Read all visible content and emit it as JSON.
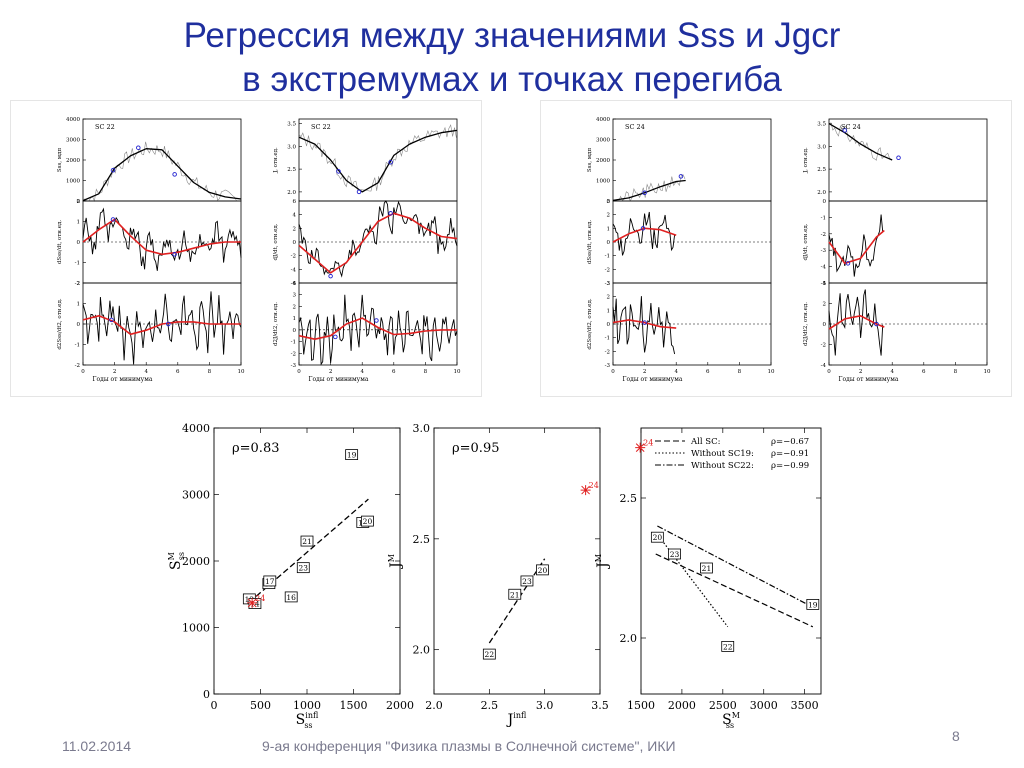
{
  "slide": {
    "title_line1": "Регрессия между значениями Sss и Jgcr",
    "title_line2": "в экстремумах и точках перегиба",
    "date": "11.02.2014",
    "conference": "9-ая конференция \"Физика плазмы в Солнечной системе\", ИКИ",
    "page_number": "8"
  },
  "colors": {
    "title": "#1f2f9e",
    "fit": "#e02020",
    "points": "#2020d0",
    "footer": "#7a7a8e"
  },
  "chart_data": [
    {
      "type": "line",
      "id": "sc22",
      "label": "SC 22",
      "xlabel": "Годы от минимума",
      "xlim": [
        0,
        10
      ],
      "xticks": [
        "0",
        "2",
        "4",
        "6",
        "8",
        "10"
      ],
      "subplots": [
        {
          "ylabel": "Sss, мдп",
          "ylim": [
            0,
            4000
          ],
          "yticks": [
            "0",
            "1000",
            "2000",
            "3000",
            "4000"
          ],
          "smooth": [
            [
              0,
              20
            ],
            [
              1,
              350
            ],
            [
              2,
              1600
            ],
            [
              3,
              2200
            ],
            [
              4,
              2550
            ],
            [
              5,
              2500
            ],
            [
              6,
              1700
            ],
            [
              7,
              900
            ],
            [
              8,
              420
            ],
            [
              9,
              200
            ],
            [
              10,
              100
            ]
          ],
          "markers": [
            [
              1.9,
              1500
            ],
            [
              3.5,
              2600
            ],
            [
              5.8,
              1300
            ]
          ]
        },
        {
          "ylabel": "dSss/dt, отн.ед.",
          "ylim": [
            -2,
            2
          ],
          "yticks": [
            "-2",
            "-1",
            "0",
            "1",
            "2"
          ],
          "fit": [
            [
              0,
              0
            ],
            [
              1,
              0.6
            ],
            [
              2,
              1.1
            ],
            [
              3,
              0.3
            ],
            [
              4,
              -0.4
            ],
            [
              5,
              -0.6
            ],
            [
              6,
              -0.5
            ],
            [
              7,
              -0.3
            ],
            [
              8,
              -0.1
            ],
            [
              9,
              0
            ],
            [
              10,
              0
            ]
          ],
          "markers": [
            [
              1.9,
              1.1
            ],
            [
              5.8,
              -0.6
            ]
          ]
        },
        {
          "ylabel": "d2Sss/dt2, отн.ед.",
          "ylim": [
            -2,
            2
          ],
          "yticks": [
            "-2",
            "-1",
            "0",
            "1",
            "2"
          ],
          "fit": [
            [
              0,
              0.2
            ],
            [
              1,
              0.4
            ],
            [
              2,
              0.1
            ],
            [
              3,
              -0.5
            ],
            [
              4,
              -0.3
            ],
            [
              5,
              0
            ],
            [
              6,
              0.1
            ],
            [
              7,
              0.1
            ],
            [
              8,
              0
            ],
            [
              9,
              0
            ],
            [
              10,
              0
            ]
          ],
          "markers": [
            [
              1.8,
              0.2
            ],
            [
              5.4,
              0
            ]
          ]
        }
      ]
    },
    {
      "type": "line",
      "id": "sc22j",
      "label": "SC 22",
      "xlabel": "Годы от минимума",
      "xlim": [
        0,
        10
      ],
      "xticks": [
        "0",
        "2",
        "4",
        "6",
        "8",
        "10"
      ],
      "subplots": [
        {
          "ylabel": "J, отн.ед.",
          "ylim": [
            1.8,
            3.6
          ],
          "yticks": [
            "2.0",
            "2.5",
            "3.0",
            "3.5"
          ],
          "smooth": [
            [
              0,
              3.2
            ],
            [
              1,
              3.05
            ],
            [
              2,
              2.7
            ],
            [
              3,
              2.25
            ],
            [
              4,
              2.0
            ],
            [
              5,
              2.2
            ],
            [
              6,
              2.8
            ],
            [
              7,
              3.05
            ],
            [
              8,
              3.2
            ],
            [
              9,
              3.3
            ],
            [
              10,
              3.35
            ]
          ],
          "markers": [
            [
              2.5,
              2.45
            ],
            [
              3.8,
              2.0
            ],
            [
              5.8,
              2.65
            ]
          ]
        },
        {
          "ylabel": "dJ/dt, отн.ед.",
          "ylim": [
            -6,
            6
          ],
          "yticks": [
            "-6",
            "-4",
            "-2",
            "0",
            "2",
            "4",
            "6"
          ],
          "fit": [
            [
              0,
              -0.5
            ],
            [
              1,
              -2.5
            ],
            [
              2,
              -4.5
            ],
            [
              3,
              -3
            ],
            [
              4,
              0
            ],
            [
              5,
              3
            ],
            [
              6,
              4.2
            ],
            [
              7,
              3.5
            ],
            [
              8,
              2
            ],
            [
              9,
              0.8
            ],
            [
              10,
              0.5
            ]
          ],
          "markers": [
            [
              2,
              -5
            ],
            [
              5.8,
              4.2
            ]
          ]
        },
        {
          "ylabel": "d2J/dt2, отн.ед.",
          "ylim": [
            -3,
            4
          ],
          "yticks": [
            "-3",
            "-2",
            "-1",
            "0",
            "1",
            "2",
            "3",
            "4"
          ],
          "fit": [
            [
              0,
              -0.5
            ],
            [
              1,
              -0.8
            ],
            [
              2,
              -0.5
            ],
            [
              3,
              0.5
            ],
            [
              4,
              1
            ],
            [
              5,
              0.2
            ],
            [
              6,
              -0.4
            ],
            [
              7,
              -0.3
            ],
            [
              8,
              -0.1
            ],
            [
              9,
              0
            ],
            [
              10,
              0
            ]
          ],
          "markers": [
            [
              2.3,
              -0.6
            ],
            [
              4.9,
              0.8
            ]
          ]
        }
      ]
    },
    {
      "type": "line",
      "id": "sc24",
      "label": "SC 24",
      "xlabel": "Годы от минимума",
      "xlim": [
        0,
        10
      ],
      "xticks": [
        "0",
        "2",
        "4",
        "6",
        "8",
        "10"
      ],
      "subplots": [
        {
          "ylabel": "Sss, мдп",
          "ylim": [
            0,
            4000
          ],
          "yticks": [
            "0",
            "1000",
            "2000",
            "3000",
            "4000"
          ],
          "smooth": [
            [
              0,
              30
            ],
            [
              1,
              150
            ],
            [
              2,
              400
            ],
            [
              3,
              700
            ],
            [
              4,
              950
            ],
            [
              4.6,
              1000
            ]
          ],
          "markers": [
            [
              2,
              400
            ],
            [
              4.3,
              1200
            ]
          ]
        },
        {
          "ylabel": "dSss/dt, отн.ед.",
          "ylim": [
            -3,
            3
          ],
          "yticks": [
            "-3",
            "-2",
            "-1",
            "0",
            "1",
            "2",
            "3"
          ],
          "fit": [
            [
              0,
              0
            ],
            [
              1,
              0.6
            ],
            [
              2,
              1.0
            ],
            [
              3,
              0.9
            ],
            [
              4,
              0.5
            ]
          ],
          "markers": [
            [
              1.9,
              1.0
            ]
          ]
        },
        {
          "ylabel": "d2Sss/dt2, отн.ед.",
          "ylim": [
            -3,
            3
          ],
          "yticks": [
            "-3",
            "-2",
            "-1",
            "0",
            "1",
            "2",
            "3"
          ],
          "fit": [
            [
              0,
              0.1
            ],
            [
              1,
              0.3
            ],
            [
              2,
              0.1
            ],
            [
              3,
              -0.2
            ],
            [
              4,
              -0.3
            ]
          ],
          "markers": [
            [
              2,
              0.1
            ]
          ]
        }
      ]
    },
    {
      "type": "line",
      "id": "sc24j",
      "label": "SC 24",
      "xlabel": "Годы от минимума",
      "xlim": [
        0,
        10
      ],
      "xticks": [
        "0",
        "2",
        "4",
        "6",
        "8",
        "10"
      ],
      "subplots": [
        {
          "ylabel": "J, отн.ед.",
          "ylim": [
            1.8,
            3.6
          ],
          "yticks": [
            "2.0",
            "2.5",
            "3.0",
            "3.5"
          ],
          "smooth": [
            [
              0,
              3.5
            ],
            [
              1,
              3.3
            ],
            [
              2,
              3.05
            ],
            [
              3,
              2.85
            ],
            [
              4,
              2.7
            ]
          ],
          "markers": [
            [
              1,
              3.35
            ],
            [
              4.4,
              2.75
            ]
          ]
        },
        {
          "ylabel": "dJ/dt, отн.ед.",
          "ylim": [
            -5,
            0
          ],
          "yticks": [
            "-5",
            "-4",
            "-3",
            "-2",
            "-1",
            "0"
          ],
          "fit": [
            [
              0,
              -2.5
            ],
            [
              1,
              -3.8
            ],
            [
              2,
              -3.5
            ],
            [
              3,
              -2.2
            ],
            [
              3.5,
              -1.8
            ]
          ],
          "markers": [
            [
              1.2,
              -3.8
            ]
          ]
        },
        {
          "ylabel": "d2J/dt2, отн.ед.",
          "ylim": [
            -4,
            4
          ],
          "yticks": [
            "-4",
            "-2",
            "0",
            "2",
            "4"
          ],
          "fit": [
            [
              0,
              -0.5
            ],
            [
              1,
              0.5
            ],
            [
              2,
              0.8
            ],
            [
              3,
              0
            ],
            [
              3.5,
              -0.3
            ]
          ],
          "markers": [
            [
              3,
              0
            ]
          ]
        }
      ]
    },
    {
      "type": "scatter",
      "id": "reg1",
      "rho_text": "ρ=0.83",
      "ylabel": "S",
      "ylabel_sup": "M",
      "ylabel_sub": "ss",
      "xlabel": "S",
      "xlabel_sup": "infl",
      "xlabel_sub": "ss",
      "xlim": [
        0,
        2000
      ],
      "ylim": [
        0,
        4000
      ],
      "xticks": [
        "0",
        "500",
        "1000",
        "1500",
        "2000"
      ],
      "yticks": [
        "0",
        "1000",
        "2000",
        "3000",
        "4000"
      ],
      "points": [
        {
          "label": "12",
          "x": 380,
          "y": 1430
        },
        {
          "label": "14",
          "x": 440,
          "y": 1360
        },
        {
          "label": "15",
          "x": 590,
          "y": 1660
        },
        {
          "label": "17",
          "x": 600,
          "y": 1700
        },
        {
          "label": "16",
          "x": 830,
          "y": 1460
        },
        {
          "label": "23",
          "x": 960,
          "y": 1900
        },
        {
          "label": "21",
          "x": 1000,
          "y": 2300
        },
        {
          "label": "19",
          "x": 1480,
          "y": 3600
        },
        {
          "label": "18",
          "x": 1600,
          "y": 2580
        },
        {
          "label": "20",
          "x": 1650,
          "y": 2600
        }
      ],
      "star": {
        "label": "24",
        "x": 410,
        "y": 1370
      },
      "fit_line": [
        [
          380,
          1380
        ],
        [
          1660,
          2930
        ]
      ]
    },
    {
      "type": "scatter",
      "id": "reg2",
      "rho_text": "ρ=0.95",
      "ylabel": "J",
      "ylabel_sup": "M",
      "xlabel": "J",
      "xlabel_sup": "infl",
      "xlim": [
        2.0,
        3.5
      ],
      "ylim": [
        1.8,
        3.0
      ],
      "xticks": [
        "2.0",
        "2.5",
        "3.0",
        "3.5"
      ],
      "yticks": [
        "2.0",
        "2.5",
        "3.0"
      ],
      "points": [
        {
          "label": "22",
          "x": 2.5,
          "y": 1.98
        },
        {
          "label": "21",
          "x": 2.73,
          "y": 2.25
        },
        {
          "label": "23",
          "x": 2.84,
          "y": 2.31
        },
        {
          "label": "20",
          "x": 2.98,
          "y": 2.36
        }
      ],
      "star": {
        "label": "24",
        "x": 3.37,
        "y": 2.72
      },
      "fit_line": [
        [
          2.5,
          2.03
        ],
        [
          3.0,
          2.41
        ]
      ]
    },
    {
      "type": "scatter",
      "id": "reg3",
      "ylabel": "J",
      "ylabel_sup": "M",
      "xlabel": "S",
      "xlabel_sup": "M",
      "xlabel_sub": "ss",
      "xlim": [
        1500,
        3700
      ],
      "ylim": [
        1.8,
        2.75
      ],
      "xticks": [
        "1500",
        "2000",
        "2500",
        "3000",
        "3500"
      ],
      "yticks": [
        "2.0",
        "2.5"
      ],
      "legend": [
        {
          "name": "All SC:",
          "rho": "ρ=−0.67",
          "dash": "6,3"
        },
        {
          "name": "Without SC19:",
          "rho": "ρ=−0.91",
          "dash": "1.5,2"
        },
        {
          "name": "Without SC22:",
          "rho": "ρ=−0.99",
          "dash": "6,2,1.5,2"
        }
      ],
      "points": [
        {
          "label": "20",
          "x": 1700,
          "y": 2.36
        },
        {
          "label": "23",
          "x": 1910,
          "y": 2.3
        },
        {
          "label": "21",
          "x": 2300,
          "y": 2.25
        },
        {
          "label": "22",
          "x": 2560,
          "y": 1.97
        },
        {
          "label": "19",
          "x": 3600,
          "y": 2.12
        }
      ],
      "star": {
        "label": "24",
        "x": 1490,
        "y": 2.68
      },
      "lines": [
        {
          "dash": "6,3",
          "pts": [
            [
              1680,
              2.3
            ],
            [
              3600,
              2.04
            ]
          ]
        },
        {
          "dash": "1.5,2",
          "pts": [
            [
              1700,
              2.37
            ],
            [
              2560,
              2.04
            ]
          ]
        },
        {
          "dash": "6,2,1.5,2",
          "pts": [
            [
              1700,
              2.4
            ],
            [
              3600,
              2.11
            ]
          ]
        }
      ]
    }
  ]
}
